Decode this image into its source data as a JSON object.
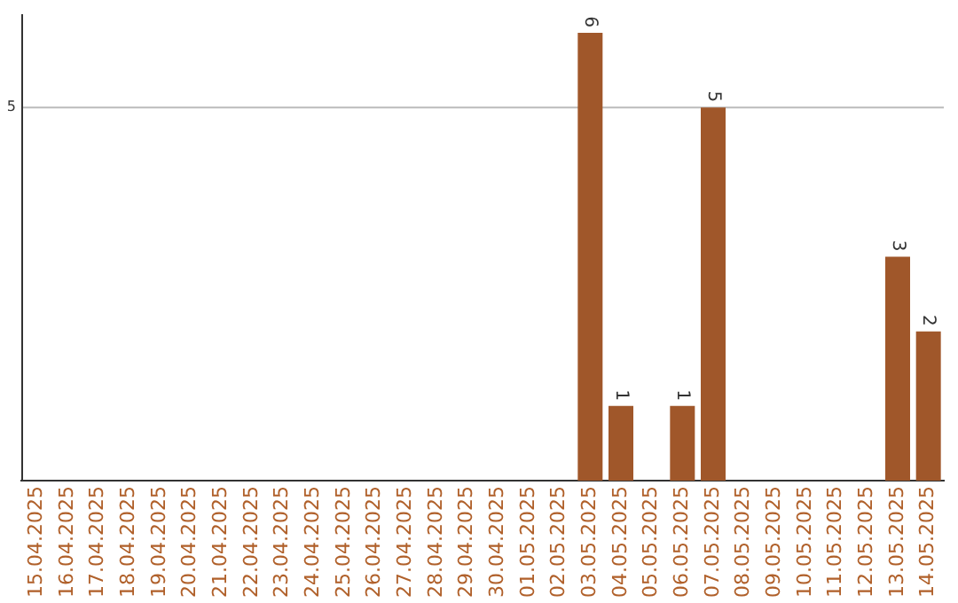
{
  "chart_data": {
    "type": "bar",
    "categories": [
      "15.04.2025",
      "16.04.2025",
      "17.04.2025",
      "18.04.2025",
      "19.04.2025",
      "20.04.2025",
      "21.04.2025",
      "22.04.2025",
      "23.04.2025",
      "24.04.2025",
      "25.04.2025",
      "26.04.2025",
      "27.04.2025",
      "28.04.2025",
      "29.04.2025",
      "30.04.2025",
      "01.05.2025",
      "02.05.2025",
      "03.05.2025",
      "04.05.2025",
      "05.05.2025",
      "06.05.2025",
      "07.05.2025",
      "08.05.2025",
      "09.05.2025",
      "10.05.2025",
      "11.05.2025",
      "12.05.2025",
      "13.05.2025",
      "14.05.2025"
    ],
    "values": [
      null,
      null,
      null,
      null,
      null,
      null,
      null,
      null,
      null,
      null,
      null,
      null,
      null,
      null,
      null,
      null,
      null,
      null,
      6,
      1,
      null,
      1,
      5,
      null,
      null,
      null,
      null,
      null,
      3,
      2
    ],
    "data_labels": true,
    "color": "#a0572a",
    "ylim": [
      0,
      6.25
    ],
    "ref_lines": [
      {
        "axis": "y",
        "value": 5,
        "label": "5",
        "color": "#bbbbbb"
      }
    ],
    "legend": false
  }
}
